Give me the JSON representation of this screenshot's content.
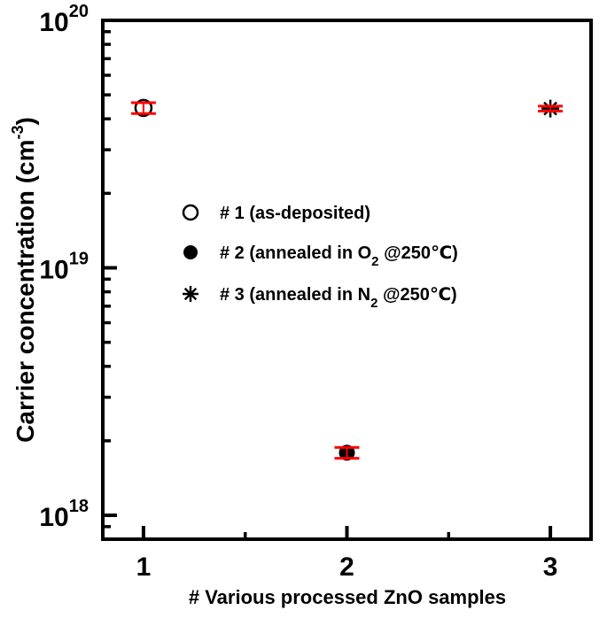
{
  "chart_data": {
    "type": "scatter",
    "title": "",
    "xlabel": "# Various processed ZnO samples",
    "ylabel": "Carrier concentration (cm^-3)",
    "ylabel_parts": {
      "main": "Carrier concentration (cm",
      "sup": "-3",
      "end": ")"
    },
    "xscale": "linear",
    "yscale": "log",
    "xlim": [
      0.8,
      3.2
    ],
    "ylim": [
      8e+17,
      1e+20
    ],
    "x_ticks": [
      1,
      2,
      3
    ],
    "x_tick_labels": [
      "1",
      "2",
      "3"
    ],
    "x_minor_ticks": [
      1.5,
      2.5
    ],
    "y_ticks": [
      1e+18,
      1e+19,
      1e+20
    ],
    "y_tick_labels": [
      {
        "base": "10",
        "exp": "18"
      },
      {
        "base": "10",
        "exp": "19"
      },
      {
        "base": "10",
        "exp": "20"
      }
    ],
    "grid": false,
    "legend_position": "center-left inside",
    "error_bar_color": "#ff0000",
    "series": [
      {
        "name": "# 1 (as-deposited)",
        "marker": "open-circle",
        "x": [
          1
        ],
        "values": [
          4.43e+19
        ],
        "err_low": [
          4.2e+19
        ],
        "err_high": [
          4.65e+19
        ],
        "legend_parts": {
          "main": "# 1 (as-deposited)",
          "sub": "",
          "tail": ""
        }
      },
      {
        "name": "# 2 (annealed in O2 @250℃)",
        "marker": "filled-circle",
        "x": [
          2
        ],
        "values": [
          1.79e+18
        ],
        "err_low": [
          1.7e+18
        ],
        "err_high": [
          1.88e+18
        ],
        "legend_parts": {
          "main": "# 2 (annealed in O",
          "sub": "2",
          "tail": " @250℃)"
        }
      },
      {
        "name": "# 3 (annealed in N2 @250℃)",
        "marker": "asterisk",
        "x": [
          3
        ],
        "values": [
          4.4e+19
        ],
        "err_low": [
          4.3e+19
        ],
        "err_high": [
          4.5e+19
        ],
        "legend_parts": {
          "main": "# 3 (annealed in N",
          "sub": "2",
          "tail": " @250℃)"
        }
      }
    ]
  }
}
